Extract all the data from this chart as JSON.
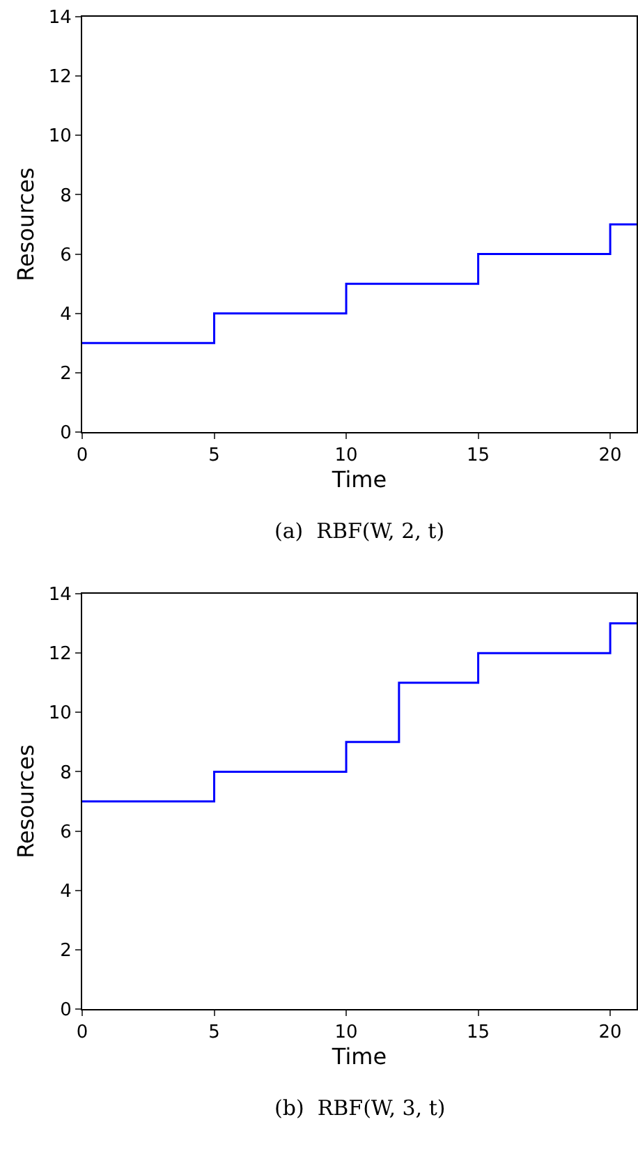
{
  "chart_data": [
    {
      "type": "step",
      "xlabel": "Time",
      "ylabel": "Resources",
      "annotations": [
        "(a)  RBF(W, 2, t)"
      ],
      "x": [
        0,
        5,
        10,
        15,
        20,
        21
      ],
      "series": [
        {
          "color": "#0000ff",
          "values": [
            3,
            4,
            5,
            6,
            7,
            7
          ]
        }
      ],
      "xlim": [
        0,
        21
      ],
      "xticks": [
        0,
        5,
        10,
        15,
        20
      ],
      "ylim": [
        0,
        14
      ],
      "yticks": [
        0,
        2,
        4,
        6,
        8,
        10,
        12,
        14
      ]
    },
    {
      "type": "step",
      "xlabel": "Time",
      "ylabel": "Resources",
      "annotations": [
        "(b)  RBF(W, 3, t)"
      ],
      "x": [
        0,
        5,
        10,
        12,
        15,
        20,
        21
      ],
      "series": [
        {
          "color": "#0000ff",
          "values": [
            7,
            8,
            9,
            11,
            12,
            13,
            13
          ]
        }
      ],
      "xlim": [
        0,
        21
      ],
      "xticks": [
        0,
        5,
        10,
        15,
        20
      ],
      "ylim": [
        0,
        14
      ],
      "yticks": [
        0,
        2,
        4,
        6,
        8,
        10,
        12,
        14
      ]
    }
  ]
}
